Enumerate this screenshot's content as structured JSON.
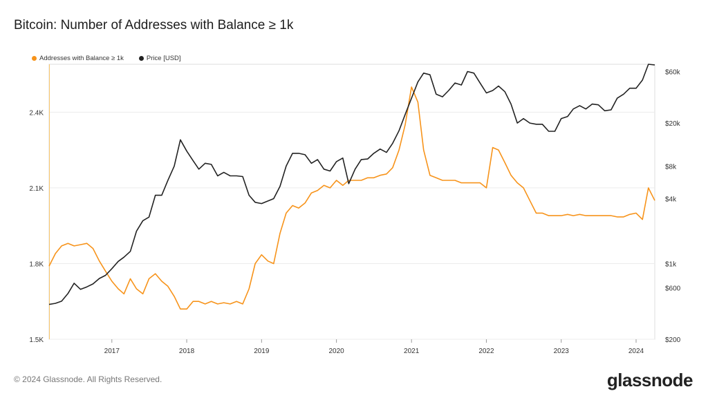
{
  "title": "Bitcoin: Number of Addresses with Balance ≥ 1k",
  "footer": "© 2024 Glassnode. All Rights Reserved.",
  "brand": "glassnode",
  "chart_data": {
    "type": "line",
    "title": "Bitcoin: Number of Addresses with Balance ≥ 1k",
    "legend_position": "top-left",
    "grid": true,
    "x_ticks": [
      "2017",
      "2018",
      "2019",
      "2020",
      "2021",
      "2022",
      "2023",
      "2024"
    ],
    "xlim": [
      "2016-03-01",
      "2024-04-01"
    ],
    "y_left": {
      "ticks": [
        "1.5K",
        "1.8K",
        "2.1K",
        "2.4K"
      ],
      "tick_values": [
        1500,
        1800,
        2100,
        2400
      ],
      "ylim": [
        1500,
        2590
      ]
    },
    "y_right": {
      "scale": "log",
      "ticks": [
        "$200",
        "$600",
        "$1k",
        "$4k",
        "$8k",
        "$20k",
        "$60k"
      ],
      "tick_values": [
        200,
        600,
        1000,
        4000,
        8000,
        20000,
        60000
      ],
      "ylim": [
        200,
        70000
      ]
    },
    "series": [
      {
        "name": "Addresses with Balance ≥ 1k",
        "color": "#f7931a",
        "axis": "left",
        "x": [
          "2016-03-01",
          "2016-04-01",
          "2016-05-01",
          "2016-06-01",
          "2016-07-01",
          "2016-08-01",
          "2016-09-01",
          "2016-10-01",
          "2016-11-01",
          "2016-12-01",
          "2017-01-01",
          "2017-02-01",
          "2017-03-01",
          "2017-04-01",
          "2017-05-01",
          "2017-06-01",
          "2017-07-01",
          "2017-08-01",
          "2017-09-01",
          "2017-10-01",
          "2017-11-01",
          "2017-12-01",
          "2018-01-01",
          "2018-02-01",
          "2018-03-01",
          "2018-04-01",
          "2018-05-01",
          "2018-06-01",
          "2018-07-01",
          "2018-08-01",
          "2018-09-01",
          "2018-10-01",
          "2018-11-01",
          "2018-12-01",
          "2019-01-01",
          "2019-02-01",
          "2019-03-01",
          "2019-04-01",
          "2019-05-01",
          "2019-06-01",
          "2019-07-01",
          "2019-08-01",
          "2019-09-01",
          "2019-10-01",
          "2019-11-01",
          "2019-12-01",
          "2020-01-01",
          "2020-02-01",
          "2020-03-01",
          "2020-04-01",
          "2020-05-01",
          "2020-06-01",
          "2020-07-01",
          "2020-08-01",
          "2020-09-01",
          "2020-10-01",
          "2020-11-01",
          "2020-12-01",
          "2021-01-01",
          "2021-02-01",
          "2021-03-01",
          "2021-04-01",
          "2021-05-01",
          "2021-06-01",
          "2021-07-01",
          "2021-08-01",
          "2021-09-01",
          "2021-10-01",
          "2021-11-01",
          "2021-12-01",
          "2022-01-01",
          "2022-02-01",
          "2022-03-01",
          "2022-04-01",
          "2022-05-01",
          "2022-06-01",
          "2022-07-01",
          "2022-08-01",
          "2022-09-01",
          "2022-10-01",
          "2022-11-01",
          "2022-12-01",
          "2023-01-01",
          "2023-02-01",
          "2023-03-01",
          "2023-04-01",
          "2023-05-01",
          "2023-06-01",
          "2023-07-01",
          "2023-08-01",
          "2023-09-01",
          "2023-10-01",
          "2023-11-01",
          "2023-12-01",
          "2024-01-01",
          "2024-02-01",
          "2024-03-01",
          "2024-04-01"
        ],
        "values": [
          1790,
          1840,
          1870,
          1880,
          1870,
          1875,
          1880,
          1860,
          1810,
          1770,
          1730,
          1700,
          1680,
          1740,
          1700,
          1680,
          1740,
          1760,
          1730,
          1710,
          1670,
          1620,
          1620,
          1650,
          1650,
          1640,
          1650,
          1640,
          1645,
          1640,
          1650,
          1640,
          1700,
          1800,
          1835,
          1810,
          1800,
          1920,
          2000,
          2030,
          2020,
          2040,
          2080,
          2090,
          2110,
          2100,
          2130,
          2110,
          2130,
          2130,
          2130,
          2140,
          2140,
          2150,
          2155,
          2180,
          2250,
          2350,
          2500,
          2440,
          2250,
          2150,
          2140,
          2130,
          2130,
          2130,
          2120,
          2120,
          2120,
          2120,
          2100,
          2260,
          2250,
          2200,
          2150,
          2120,
          2100,
          2050,
          2000,
          2000,
          1990,
          1990,
          1990,
          1995,
          1990,
          1995,
          1990,
          1990,
          1990,
          1990,
          1990,
          1985,
          1985,
          1995,
          2000,
          1975,
          2100,
          2050
        ]
      },
      {
        "name": "Price [USD]",
        "color": "#222222",
        "axis": "right",
        "x": [
          "2016-03-01",
          "2016-04-01",
          "2016-05-01",
          "2016-06-01",
          "2016-07-01",
          "2016-08-01",
          "2016-09-01",
          "2016-10-01",
          "2016-11-01",
          "2016-12-01",
          "2017-01-01",
          "2017-02-01",
          "2017-03-01",
          "2017-04-01",
          "2017-05-01",
          "2017-06-01",
          "2017-07-01",
          "2017-08-01",
          "2017-09-01",
          "2017-10-01",
          "2017-11-01",
          "2017-12-01",
          "2018-01-01",
          "2018-02-01",
          "2018-03-01",
          "2018-04-01",
          "2018-05-01",
          "2018-06-01",
          "2018-07-01",
          "2018-08-01",
          "2018-09-01",
          "2018-10-01",
          "2018-11-01",
          "2018-12-01",
          "2019-01-01",
          "2019-02-01",
          "2019-03-01",
          "2019-04-01",
          "2019-05-01",
          "2019-06-01",
          "2019-07-01",
          "2019-08-01",
          "2019-09-01",
          "2019-10-01",
          "2019-11-01",
          "2019-12-01",
          "2020-01-01",
          "2020-02-01",
          "2020-03-01",
          "2020-04-01",
          "2020-05-01",
          "2020-06-01",
          "2020-07-01",
          "2020-08-01",
          "2020-09-01",
          "2020-10-01",
          "2020-11-01",
          "2020-12-01",
          "2021-01-01",
          "2021-02-01",
          "2021-03-01",
          "2021-04-01",
          "2021-05-01",
          "2021-06-01",
          "2021-07-01",
          "2021-08-01",
          "2021-09-01",
          "2021-10-01",
          "2021-11-01",
          "2021-12-01",
          "2022-01-01",
          "2022-02-01",
          "2022-03-01",
          "2022-04-01",
          "2022-05-01",
          "2022-06-01",
          "2022-07-01",
          "2022-08-01",
          "2022-09-01",
          "2022-10-01",
          "2022-11-01",
          "2022-12-01",
          "2023-01-01",
          "2023-02-01",
          "2023-03-01",
          "2023-04-01",
          "2023-05-01",
          "2023-06-01",
          "2023-07-01",
          "2023-08-01",
          "2023-09-01",
          "2023-10-01",
          "2023-11-01",
          "2023-12-01",
          "2024-01-01",
          "2024-02-01",
          "2024-03-01",
          "2024-04-01"
        ],
        "values": [
          420,
          430,
          450,
          530,
          660,
          580,
          610,
          650,
          730,
          780,
          900,
          1050,
          1150,
          1300,
          2000,
          2500,
          2700,
          4300,
          4300,
          5900,
          8000,
          14000,
          11000,
          9000,
          7500,
          8500,
          8300,
          6500,
          7000,
          6500,
          6500,
          6400,
          4300,
          3700,
          3600,
          3800,
          4000,
          5200,
          8000,
          10500,
          10500,
          10200,
          8500,
          9200,
          7500,
          7200,
          8800,
          9500,
          5500,
          7500,
          9200,
          9300,
          10500,
          11500,
          10700,
          13000,
          17000,
          24000,
          34000,
          48000,
          58000,
          56000,
          37000,
          35000,
          40000,
          47000,
          45000,
          60000,
          58000,
          47000,
          38000,
          40000,
          44000,
          39000,
          30000,
          20000,
          22000,
          20000,
          19500,
          19500,
          16800,
          16800,
          22000,
          23000,
          27000,
          29000,
          27000,
          30000,
          29500,
          26000,
          26500,
          34000,
          37000,
          42000,
          42000,
          50000,
          70000,
          69000
        ]
      }
    ]
  }
}
